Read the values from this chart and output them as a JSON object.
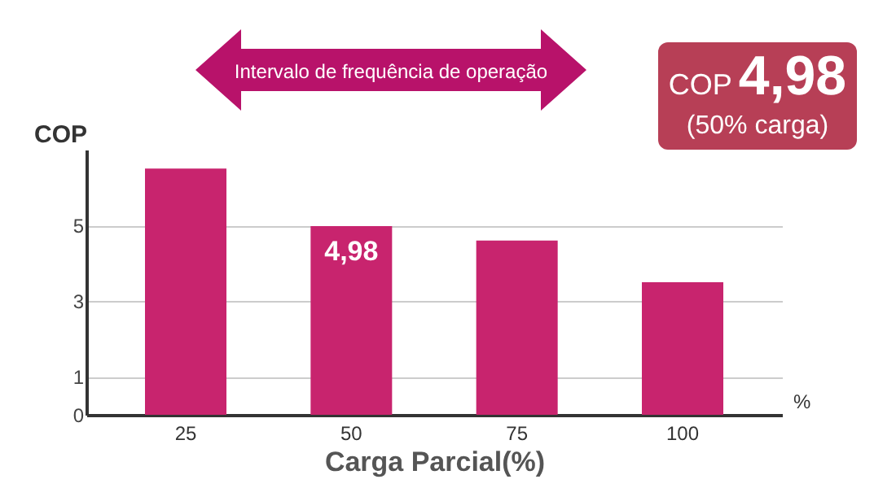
{
  "chart_data": {
    "type": "bar",
    "xlabel": "Carga Parcial(%)",
    "ylabel": "COP",
    "categories": [
      "25",
      "50",
      "75",
      "100"
    ],
    "values": [
      6.5,
      4.98,
      4.6,
      3.5
    ],
    "value_labels": [
      null,
      "4,98",
      null,
      null
    ],
    "color": "#c8246e",
    "ylim": [
      0,
      7
    ],
    "yticks": [
      0,
      1,
      3,
      5
    ],
    "grid": "y",
    "annotations": [
      "Intervalo de frequência de operação",
      "COP",
      "4,98",
      "(50% carga)",
      "%"
    ]
  }
}
